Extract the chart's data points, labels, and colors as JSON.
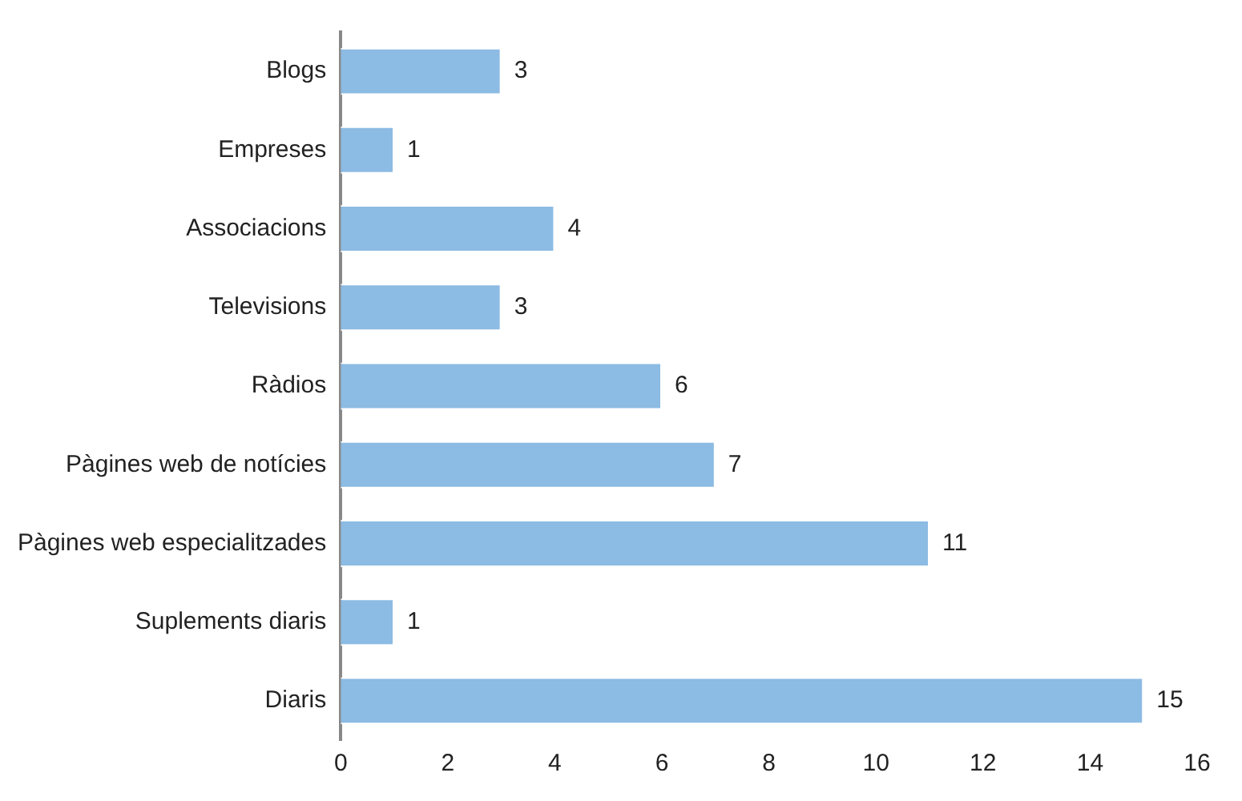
{
  "chart_data": {
    "type": "bar",
    "orientation": "horizontal",
    "categories": [
      "Blogs",
      "Empreses",
      "Associacions",
      "Televisions",
      "Ràdios",
      "Pàgines web de notícies",
      "Pàgines web especialitzades",
      "Suplements diaris",
      "Diaris"
    ],
    "values": [
      3,
      1,
      4,
      3,
      6,
      7,
      11,
      1,
      15
    ],
    "color": "#8cbbe3",
    "xlim": [
      0,
      16
    ],
    "xticks": [
      0,
      2,
      4,
      6,
      8,
      10,
      12,
      14,
      16
    ],
    "grid": false,
    "legend": false,
    "data_labels": true
  }
}
